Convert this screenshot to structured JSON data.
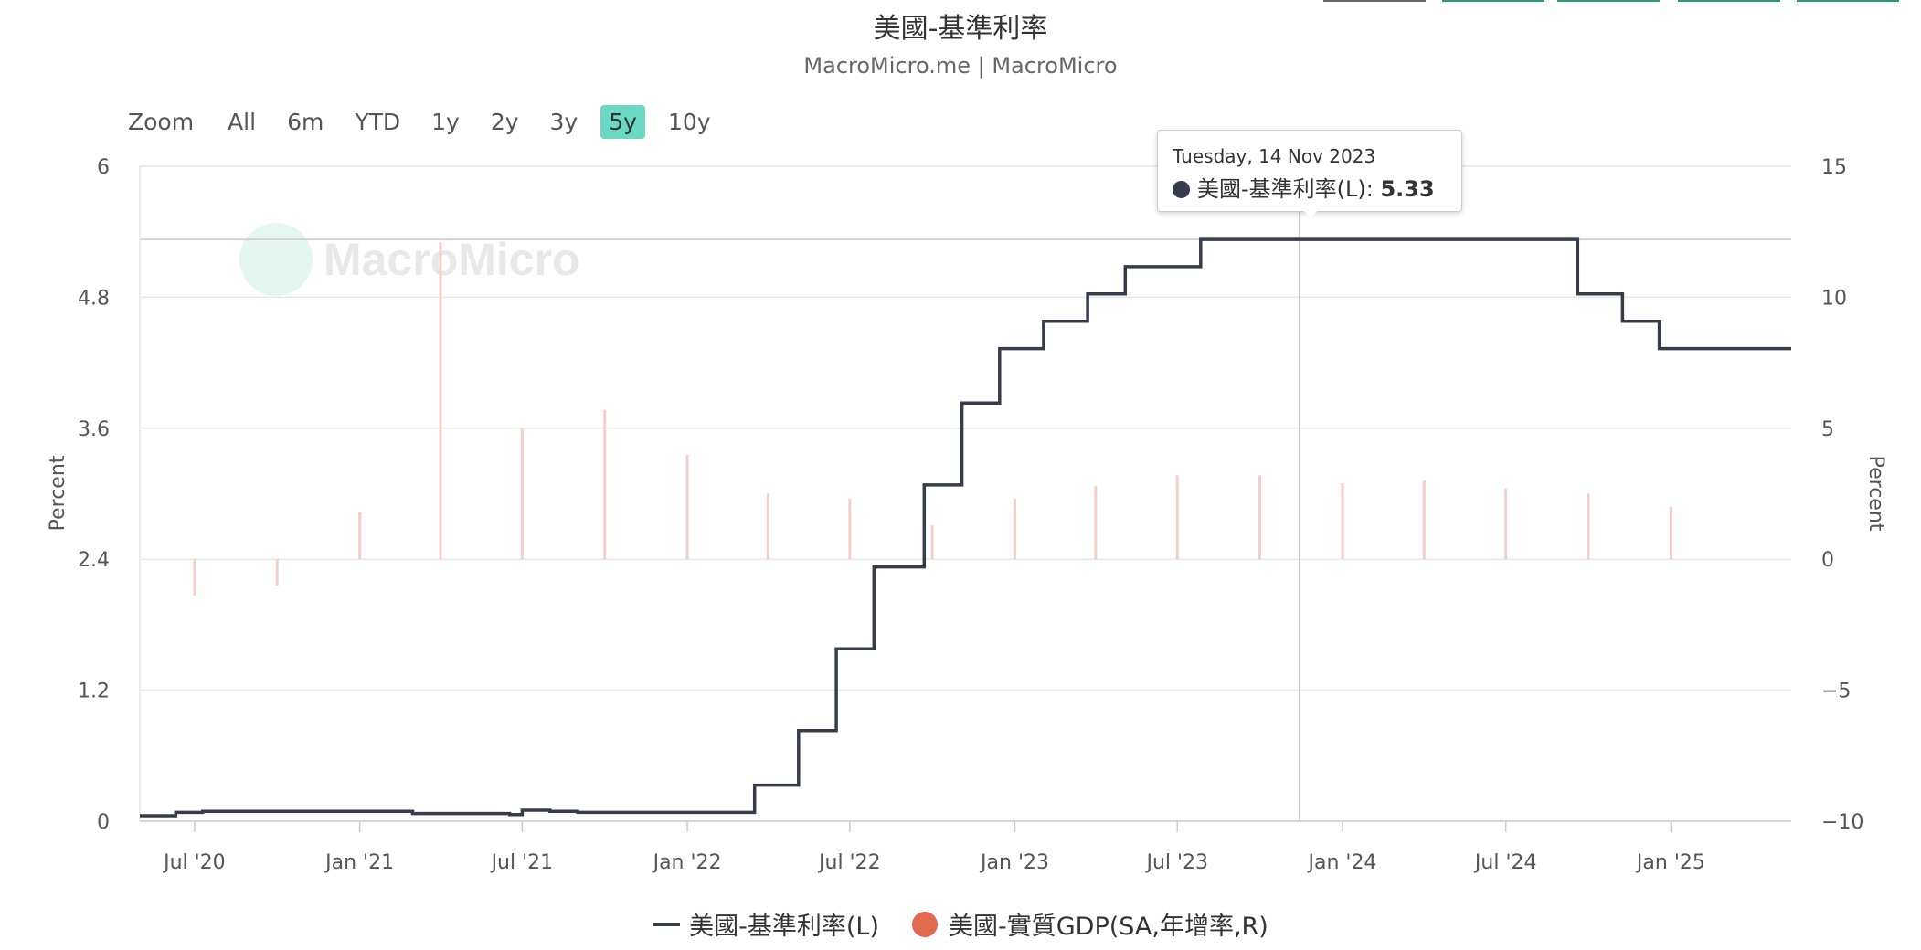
{
  "title": "美國-基準利率",
  "subtitle": "MacroMicro.me | MacroMicro",
  "watermark": "MacroMicro",
  "range_selector": {
    "zoom_label": "Zoom",
    "buttons": [
      "All",
      "6m",
      "YTD",
      "1y",
      "2y",
      "3y",
      "5y",
      "10y"
    ],
    "active": "5y"
  },
  "tooltip": {
    "date": "Tuesday, 14 Nov 2023",
    "series": "美國-基準利率(L):",
    "value": "5.33"
  },
  "legend": [
    {
      "name": "美國-基準利率(L)",
      "color": "#363c4a",
      "symbol": "line"
    },
    {
      "name": "美國-實質GDP(SA,年增率,R)",
      "color": "#e06a50",
      "symbol": "dot"
    }
  ],
  "chart_data": {
    "type": "line",
    "x_ticks": [
      "Jul '20",
      "Jan '21",
      "Jul '21",
      "Jan '22",
      "Jul '22",
      "Jan '23",
      "Jul '23",
      "Jan '24",
      "Jul '24",
      "Jan '25"
    ],
    "x_range": [
      "2020-05-01",
      "2025-05-15"
    ],
    "left_axis": {
      "label": "Percent",
      "ticks": [
        "0",
        "1.2",
        "2.4",
        "3.6",
        "4.8",
        "6"
      ],
      "range": [
        0,
        6
      ]
    },
    "right_axis": {
      "label": "Percent",
      "ticks": [
        "−10",
        "−5",
        "0",
        "5",
        "10",
        "15"
      ],
      "range": [
        -10,
        15
      ]
    },
    "grid": true,
    "crosshair_date": "2023-11-14",
    "series": [
      {
        "name": "美國-基準利率(L)",
        "axis": "left",
        "color": "#363c4a",
        "step": true,
        "points": [
          [
            "2020-05-01",
            0.05
          ],
          [
            "2020-06-10",
            0.08
          ],
          [
            "2020-07-10",
            0.09
          ],
          [
            "2020-08-15",
            0.09
          ],
          [
            "2020-10-01",
            0.09
          ],
          [
            "2021-01-01",
            0.09
          ],
          [
            "2021-03-01",
            0.07
          ],
          [
            "2021-06-17",
            0.06
          ],
          [
            "2021-07-01",
            0.1
          ],
          [
            "2021-08-01",
            0.09
          ],
          [
            "2021-09-01",
            0.08
          ],
          [
            "2022-03-17",
            0.33
          ],
          [
            "2022-05-05",
            0.83
          ],
          [
            "2022-06-16",
            1.58
          ],
          [
            "2022-07-28",
            2.33
          ],
          [
            "2022-09-22",
            3.08
          ],
          [
            "2022-11-03",
            3.83
          ],
          [
            "2022-12-15",
            4.33
          ],
          [
            "2023-02-02",
            4.58
          ],
          [
            "2023-03-23",
            4.83
          ],
          [
            "2023-05-04",
            5.08
          ],
          [
            "2023-07-27",
            5.33
          ],
          [
            "2024-09-19",
            4.83
          ],
          [
            "2024-11-08",
            4.58
          ],
          [
            "2024-12-19",
            4.33
          ],
          [
            "2025-05-15",
            4.33
          ]
        ]
      },
      {
        "name": "美國-實質GDP(SA,年增率,R)",
        "axis": "right",
        "color": "#f4cfc8",
        "type": "bar",
        "points": [
          [
            "2020-07-01",
            -1.4
          ],
          [
            "2020-10-01",
            -1.0
          ],
          [
            "2021-01-01",
            1.8
          ],
          [
            "2021-04-01",
            12.1
          ],
          [
            "2021-07-01",
            5.0
          ],
          [
            "2021-10-01",
            5.7
          ],
          [
            "2022-01-01",
            4.0
          ],
          [
            "2022-04-01",
            2.5
          ],
          [
            "2022-07-01",
            2.3
          ],
          [
            "2022-10-01",
            1.3
          ],
          [
            "2023-01-01",
            2.3
          ],
          [
            "2023-04-01",
            2.8
          ],
          [
            "2023-07-01",
            3.2
          ],
          [
            "2023-10-01",
            3.2
          ],
          [
            "2024-01-01",
            2.9
          ],
          [
            "2024-04-01",
            3.0
          ],
          [
            "2024-07-01",
            2.7
          ],
          [
            "2024-10-01",
            2.5
          ],
          [
            "2025-01-01",
            2.0
          ]
        ]
      }
    ]
  }
}
